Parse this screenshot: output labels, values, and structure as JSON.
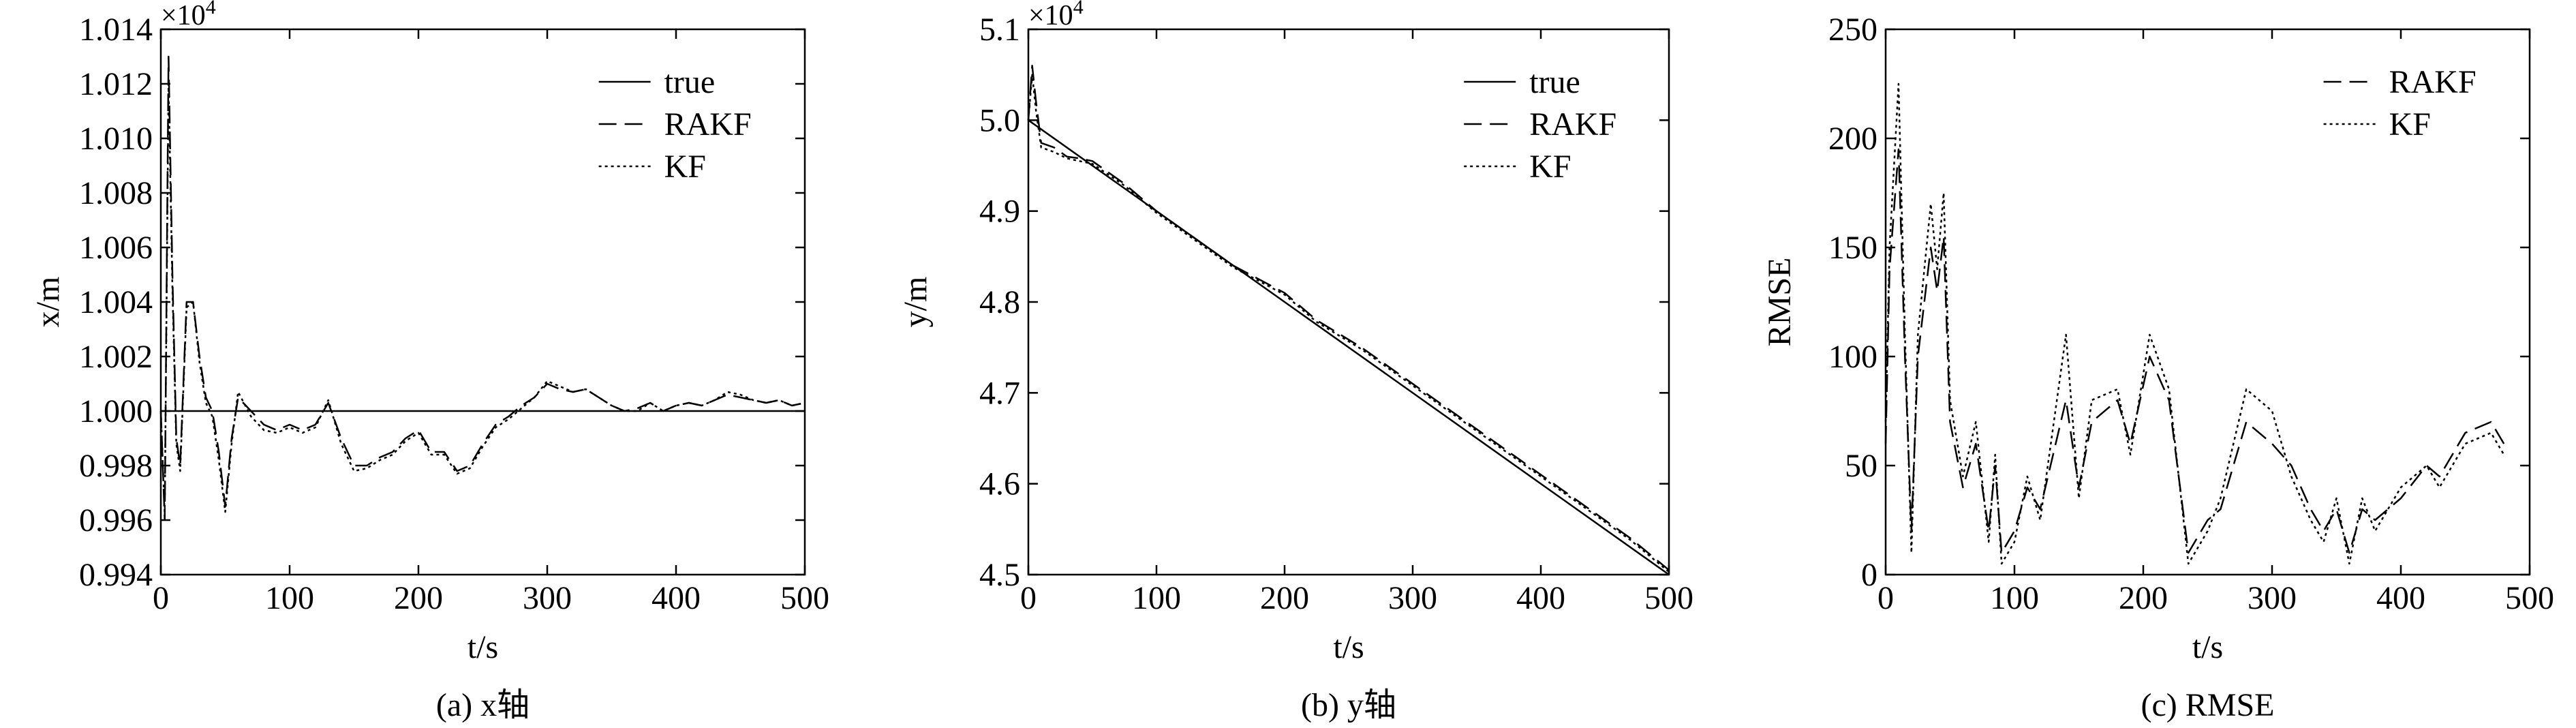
{
  "chart_data": [
    {
      "type": "line",
      "caption": "(a) x轴",
      "xlabel": "t/s",
      "ylabel": "x/m",
      "multiplier": "×10",
      "multiplier_exp": "4",
      "legend": "upper right",
      "xlim": [
        0,
        500
      ],
      "xticks": [
        0,
        100,
        200,
        300,
        400,
        500
      ],
      "ylim": [
        0.994,
        1.014
      ],
      "yticks": [
        0.994,
        0.996,
        0.998,
        {
          "value": 1,
          "label": "1.000"
        },
        1.002,
        1.004,
        1.006,
        1.008,
        {
          "value": 1.01,
          "label": "1.010"
        },
        1.012,
        1.014
      ],
      "x": [
        0,
        3,
        6,
        9,
        12,
        15,
        20,
        25,
        30,
        35,
        40,
        45,
        50,
        55,
        60,
        70,
        80,
        90,
        100,
        110,
        120,
        130,
        140,
        150,
        160,
        170,
        180,
        190,
        200,
        210,
        220,
        230,
        240,
        250,
        260,
        270,
        280,
        290,
        300,
        310,
        320,
        330,
        340,
        350,
        360,
        370,
        380,
        390,
        400,
        410,
        420,
        430,
        440,
        450,
        460,
        470,
        480,
        490,
        500
      ],
      "series": [
        {
          "name": "true",
          "color": "#000",
          "dash": "solid",
          "x": [
            0,
            500
          ],
          "values": [
            1,
            1
          ]
        },
        {
          "name": "RAKF",
          "color": "#000",
          "dash": "dashed",
          "values": [
            1.0,
            0.996,
            1.013,
            1.005,
            0.999,
            0.998,
            1.004,
            1.004,
            1.002,
            1.0005,
            1.0,
            0.9985,
            0.9965,
            0.999,
            1.0005,
            1.0,
            0.9995,
            0.9993,
            0.9995,
            0.9993,
            0.9995,
            1.0003,
            0.999,
            0.998,
            0.998,
            0.9983,
            0.9985,
            0.999,
            0.9993,
            0.9985,
            0.9985,
            0.9978,
            0.998,
            0.9988,
            0.9995,
            0.9998,
            1.0002,
            1.0005,
            1.001,
            1.0008,
            1.0007,
            1.0008,
            1.0005,
            1.0002,
            1.0,
            1.0001,
            1.0003,
            1.0,
            1.0002,
            1.0003,
            1.0002,
            1.0004,
            1.0006,
            1.0005,
            1.0004,
            1.0003,
            1.0004,
            1.0002,
            1.0003
          ]
        },
        {
          "name": "KF",
          "color": "#000",
          "dash": "dotted",
          "values": [
            1.0,
            0.9962,
            1.012,
            1.0045,
            0.9988,
            0.9978,
            1.0038,
            1.004,
            1.0018,
            1.0003,
            0.9998,
            0.9982,
            0.9963,
            0.9988,
            1.0007,
            0.9998,
            0.9993,
            0.9992,
            0.9994,
            0.9992,
            0.9994,
            1.0004,
            0.9988,
            0.9978,
            0.9979,
            0.9982,
            0.9984,
            0.9989,
            0.9992,
            0.9984,
            0.9984,
            0.9977,
            0.9979,
            0.9987,
            0.9994,
            0.9997,
            1.0001,
            1.0005,
            1.0011,
            1.0009,
            1.0007,
            1.0008,
            1.0005,
            1.0002,
            1.0,
            1.0,
            1.0003,
            1.0,
            1.0002,
            1.0003,
            1.0002,
            1.0004,
            1.0007,
            1.0006,
            1.0004,
            1.0003,
            1.0004,
            1.0002,
            1.0003
          ]
        }
      ]
    },
    {
      "type": "line",
      "caption": "(b) y轴",
      "xlabel": "t/s",
      "ylabel": "y/m",
      "multiplier": "×10",
      "multiplier_exp": "4",
      "legend": "upper right",
      "xlim": [
        0,
        500
      ],
      "xticks": [
        0,
        100,
        200,
        300,
        400,
        500
      ],
      "ylim": [
        4.5,
        5.1
      ],
      "yticks": [
        4.5,
        4.6,
        4.7,
        4.8,
        4.9,
        {
          "value": 5,
          "label": "5.0"
        },
        5.1
      ],
      "x": [
        0,
        3,
        6,
        10,
        20,
        30,
        40,
        50,
        75,
        100,
        130,
        160,
        200,
        225,
        260,
        290,
        320,
        350,
        380,
        410,
        440,
        470,
        500
      ],
      "series": [
        {
          "name": "true",
          "color": "#000",
          "dash": "solid",
          "x": [
            0,
            500
          ],
          "values": [
            5.0,
            4.5
          ]
        },
        {
          "name": "RAKF",
          "color": "#000",
          "dash": "dashed",
          "values": [
            5.0,
            5.06,
            5.02,
            4.975,
            4.97,
            4.96,
            4.958,
            4.955,
            4.93,
            4.9,
            4.87,
            4.84,
            4.81,
            4.78,
            4.75,
            4.72,
            4.69,
            4.66,
            4.63,
            4.6,
            4.57,
            4.54,
            4.505
          ]
        },
        {
          "name": "KF",
          "color": "#000",
          "dash": "dotted",
          "values": [
            5.0,
            5.05,
            5.01,
            4.97,
            4.965,
            4.958,
            4.955,
            4.952,
            4.928,
            4.898,
            4.868,
            4.838,
            4.808,
            4.778,
            4.748,
            4.718,
            4.688,
            4.658,
            4.628,
            4.598,
            4.568,
            4.538,
            4.503
          ]
        }
      ]
    },
    {
      "type": "line",
      "caption": "(c) RMSE",
      "xlabel": "t/s",
      "ylabel": "RMSE",
      "legend": "upper right",
      "xlim": [
        0,
        500
      ],
      "xticks": [
        0,
        100,
        200,
        300,
        400,
        500
      ],
      "ylim": [
        0,
        250
      ],
      "yticks": [
        0,
        50,
        100,
        150,
        200,
        250
      ],
      "x": [
        0,
        3,
        10,
        15,
        20,
        25,
        35,
        40,
        45,
        50,
        60,
        70,
        80,
        85,
        90,
        100,
        110,
        120,
        140,
        150,
        160,
        180,
        190,
        205,
        220,
        235,
        250,
        260,
        280,
        300,
        315,
        330,
        340,
        350,
        360,
        370,
        380,
        400,
        420,
        430,
        450,
        470,
        480
      ],
      "series": [
        {
          "name": "RAKF",
          "color": "#000",
          "dash": "dashed",
          "values": [
            60,
            140,
            195,
            100,
            20,
            100,
            150,
            130,
            155,
            70,
            40,
            60,
            20,
            50,
            10,
            20,
            40,
            30,
            80,
            40,
            70,
            80,
            60,
            100,
            80,
            10,
            25,
            30,
            70,
            60,
            50,
            30,
            20,
            30,
            10,
            30,
            25,
            35,
            50,
            45,
            65,
            70,
            60
          ]
        },
        {
          "name": "KF",
          "color": "#000",
          "dash": "dotted",
          "values": [
            70,
            150,
            225,
            110,
            10,
            110,
            170,
            140,
            175,
            80,
            45,
            70,
            15,
            55,
            5,
            15,
            45,
            25,
            110,
            35,
            80,
            85,
            55,
            110,
            85,
            5,
            20,
            35,
            85,
            75,
            45,
            25,
            15,
            35,
            5,
            35,
            20,
            40,
            50,
            40,
            60,
            65,
            55
          ]
        }
      ]
    }
  ]
}
